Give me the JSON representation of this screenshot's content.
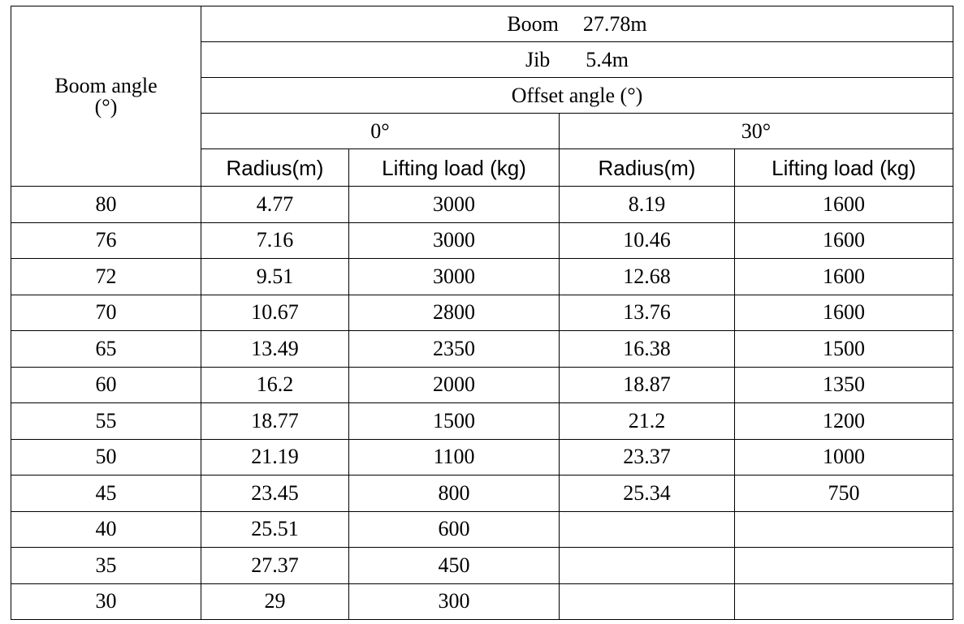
{
  "table": {
    "corner_line1": "Boom angle",
    "corner_line2": "(°)",
    "boom_label": "Boom",
    "boom_value": "27.78m",
    "jib_label": "Jib",
    "jib_value": "5.4m",
    "offset_header": "Offset angle (°)",
    "offset_0": "0°",
    "offset_30": "30°",
    "col_radius": "Radius(m)",
    "col_load": "Lifting load (kg)",
    "rows": [
      {
        "angle": "80",
        "r0": "4.77",
        "l0": "3000",
        "r30": "8.19",
        "l30": "1600"
      },
      {
        "angle": "76",
        "r0": "7.16",
        "l0": "3000",
        "r30": "10.46",
        "l30": "1600"
      },
      {
        "angle": "72",
        "r0": "9.51",
        "l0": "3000",
        "r30": "12.68",
        "l30": "1600"
      },
      {
        "angle": "70",
        "r0": "10.67",
        "l0": "2800",
        "r30": "13.76",
        "l30": "1600"
      },
      {
        "angle": "65",
        "r0": "13.49",
        "l0": "2350",
        "r30": "16.38",
        "l30": "1500"
      },
      {
        "angle": "60",
        "r0": "16.2",
        "l0": "2000",
        "r30": "18.87",
        "l30": "1350"
      },
      {
        "angle": "55",
        "r0": "18.77",
        "l0": "1500",
        "r30": "21.2",
        "l30": "1200"
      },
      {
        "angle": "50",
        "r0": "21.19",
        "l0": "1100",
        "r30": "23.37",
        "l30": "1000"
      },
      {
        "angle": "45",
        "r0": "23.45",
        "l0": "800",
        "r30": "25.34",
        "l30": "750"
      },
      {
        "angle": "40",
        "r0": "25.51",
        "l0": "600",
        "r30": "",
        "l30": ""
      },
      {
        "angle": "35",
        "r0": "27.37",
        "l0": "450",
        "r30": "",
        "l30": ""
      },
      {
        "angle": "30",
        "r0": "29",
        "l0": "300",
        "r30": "",
        "l30": ""
      }
    ]
  }
}
